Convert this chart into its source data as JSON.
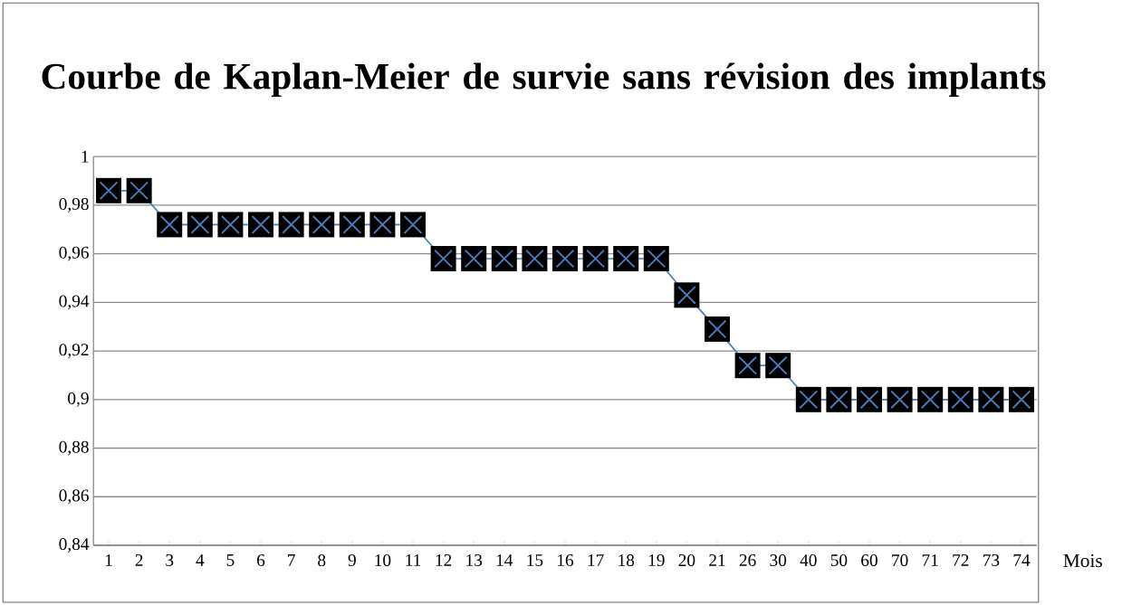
{
  "chart_data": {
    "type": "line",
    "title": "Courbe de Kaplan-Meier de survie sans révision des implants",
    "xlabel": "Mois",
    "categories": [
      "1",
      "2",
      "3",
      "4",
      "5",
      "6",
      "7",
      "8",
      "9",
      "10",
      "11",
      "12",
      "13",
      "14",
      "15",
      "16",
      "17",
      "18",
      "19",
      "20",
      "21",
      "26",
      "30",
      "40",
      "50",
      "60",
      "70",
      "71",
      "72",
      "73",
      "74"
    ],
    "series": [
      {
        "color": "#4a7ebb",
        "values": [
          0.986,
          0.986,
          0.972,
          0.972,
          0.972,
          0.972,
          0.972,
          0.972,
          0.972,
          0.972,
          0.972,
          0.958,
          0.958,
          0.958,
          0.958,
          0.958,
          0.958,
          0.958,
          0.958,
          0.943,
          0.929,
          0.914,
          0.914,
          0.9,
          0.9,
          0.9,
          0.9,
          0.9,
          0.9,
          0.9,
          0.9
        ]
      }
    ],
    "ylim": [
      0.84,
      1
    ],
    "yticks": [
      {
        "value": 0.84,
        "label": "0,84"
      },
      {
        "value": 0.86,
        "label": "0,86"
      },
      {
        "value": 0.88,
        "label": "0,88"
      },
      {
        "value": 0.9,
        "label": "0,9"
      },
      {
        "value": 0.92,
        "label": "0,92"
      },
      {
        "value": 0.94,
        "label": "0,94"
      },
      {
        "value": 0.96,
        "label": "0,96"
      },
      {
        "value": 0.98,
        "label": "0,98"
      },
      {
        "value": 1,
        "label": "1"
      }
    ],
    "grid": "y",
    "marker": "cross",
    "line_style": "solid"
  }
}
